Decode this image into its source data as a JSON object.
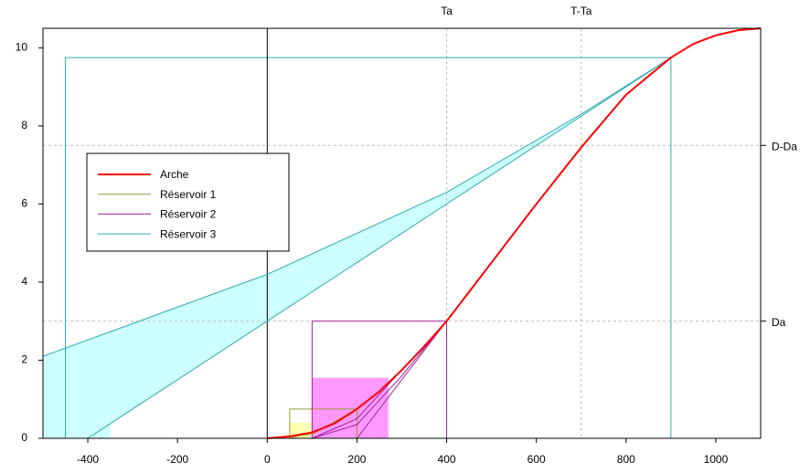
{
  "chart_data": {
    "type": "line",
    "xlim": [
      -500,
      1100
    ],
    "ylim": [
      0,
      10.5
    ],
    "xticks": [
      -400,
      -200,
      0,
      200,
      400,
      600,
      800,
      1000
    ],
    "yticks": [
      0,
      2,
      4,
      6,
      8,
      10
    ],
    "x_refs": [
      {
        "value": 400,
        "label": "Ta"
      },
      {
        "value": 700,
        "label": "T-Ta"
      }
    ],
    "y_refs": [
      {
        "value": 3,
        "label": "Da"
      },
      {
        "value": 7.5,
        "label": "D-Da"
      }
    ],
    "series": [
      {
        "name": "Arche",
        "color": "#ff0000",
        "width": 2,
        "lines": [
          {
            "x": [
              0,
              50,
              100,
              150,
              200,
              250,
              300,
              350,
              400,
              500,
              600,
              700,
              800,
              900,
              950,
              1000,
              1050,
              1100
            ],
            "y": [
              0,
              0.05,
              0.15,
              0.38,
              0.75,
              1.2,
              1.75,
              2.35,
              3.0,
              4.5,
              6.0,
              7.45,
              8.8,
              9.75,
              10.1,
              10.32,
              10.45,
              10.5
            ]
          }
        ]
      },
      {
        "name": "Réservoir 1",
        "color": "#999933",
        "width": 1,
        "box": {
          "x": [
            50,
            200
          ],
          "y": [
            0,
            0.75
          ]
        },
        "fills": [
          {
            "color": "#ffffb0",
            "x": [
              50,
              100,
              100,
              50
            ],
            "y": [
              0,
              0,
              0.4,
              0.4
            ]
          }
        ],
        "lines": [
          {
            "x": [
              50,
              100,
              150,
              200
            ],
            "y": [
              0,
              0.15,
              0.4,
              0.75
            ]
          },
          {
            "x": [
              0,
              100,
              200
            ],
            "y": [
              0,
              0.1,
              0.75
            ]
          }
        ]
      },
      {
        "name": "Réservoir 2",
        "color": "#a020a0",
        "width": 1,
        "box": {
          "x": [
            100,
            400
          ],
          "y": [
            0,
            3
          ]
        },
        "fills": [
          {
            "color": "#ff99ff",
            "x": [
              100,
              270,
              270,
              100
            ],
            "y": [
              0,
              0,
              1.55,
              1.55
            ]
          }
        ],
        "lines": [
          {
            "x": [
              100,
              200,
              300,
              400
            ],
            "y": [
              0,
              0.35,
              1.6,
              3
            ]
          },
          {
            "x": [
              200,
              400
            ],
            "y": [
              0,
              3
            ]
          },
          {
            "x": [
              100,
              200,
              300,
              400
            ],
            "y": [
              0,
              0.5,
              1.75,
              3
            ]
          }
        ]
      },
      {
        "name": "Réservoir 3",
        "color": "#33aaaa",
        "width": 1,
        "box": {
          "x": [
            -450,
            900
          ],
          "y": [
            0,
            9.75
          ]
        },
        "fills": [
          {
            "color": "#ccffff",
            "x": [
              -500,
              0,
              400,
              700,
              900,
              -400,
              -500
            ],
            "y": [
              2.1,
              4.2,
              6.3,
              8.3,
              9.75,
              0,
              0
            ]
          },
          {
            "color": "#ccffff",
            "x": [
              -450,
              -350,
              -350,
              -450
            ],
            "y": [
              0,
              0,
              0.45,
              0.45
            ]
          }
        ],
        "lines": [
          {
            "x": [
              -500,
              0,
              400,
              700,
              900
            ],
            "y": [
              2.1,
              4.2,
              6.3,
              8.3,
              9.75
            ]
          },
          {
            "x": [
              -400,
              900
            ],
            "y": [
              0,
              9.75
            ]
          }
        ]
      }
    ]
  }
}
